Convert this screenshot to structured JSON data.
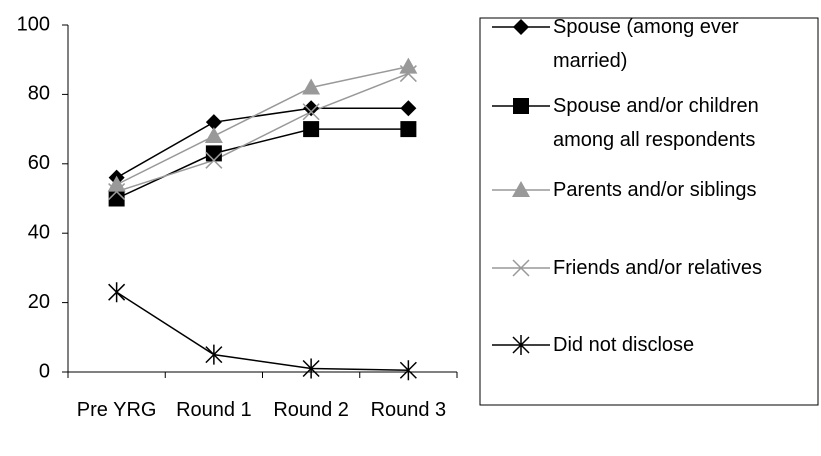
{
  "chart_data": {
    "type": "line",
    "categories": [
      "Pre YRG",
      "Round 1",
      "Round 2",
      "Round 3"
    ],
    "series": [
      {
        "name": "Spouse (among ever married)",
        "color": "#000000",
        "marker": "diamond",
        "values": [
          56,
          72,
          76,
          76
        ]
      },
      {
        "name": "Spouse and/or children among all respondents",
        "color": "#000000",
        "marker": "square",
        "values": [
          50,
          63,
          70,
          70
        ]
      },
      {
        "name": "Parents and/or siblings",
        "color": "#999999",
        "marker": "triangle",
        "values": [
          54,
          68,
          82,
          88
        ]
      },
      {
        "name": "Friends and/or relatives",
        "color": "#999999",
        "marker": "x",
        "values": [
          52,
          61,
          75,
          86
        ]
      },
      {
        "name": "Did not disclose",
        "color": "#000000",
        "marker": "star",
        "values": [
          23,
          5,
          1,
          0.5
        ]
      }
    ],
    "ylim": [
      0,
      100
    ],
    "yticks": [
      0,
      20,
      40,
      60,
      80,
      100
    ],
    "grid": false,
    "legend": "right"
  }
}
